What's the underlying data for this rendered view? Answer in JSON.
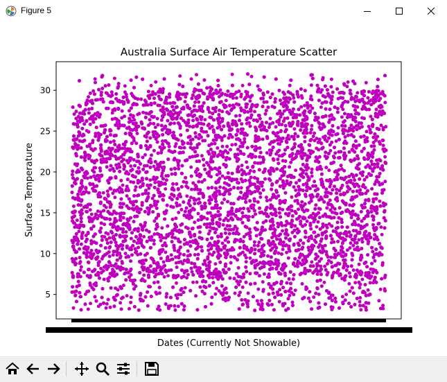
{
  "window": {
    "title": "Figure 5",
    "controls": [
      "minimize",
      "maximize",
      "close"
    ]
  },
  "toolbar": {
    "buttons": [
      "home-icon",
      "back-icon",
      "forward-icon",
      "pan-icon",
      "zoom-icon",
      "configure-subplots-icon",
      "save-icon"
    ],
    "coordinates_text": ""
  },
  "chart_data": {
    "type": "scatter",
    "title": "Australia Surface Air Temperature Scatter",
    "xlabel": "Dates (Currently Not Showable)",
    "ylabel": "Surface Temperature",
    "yticks": [
      5,
      10,
      15,
      20,
      25,
      30
    ],
    "ylim": [
      2,
      33.5
    ],
    "x_tick_labels_illegible": true,
    "marker_color": "#bf00bf",
    "point_count_approx": 8000,
    "y_distribution": {
      "min": 3,
      "max": 32,
      "dense_range": [
        7,
        30
      ],
      "sparse_below": 7
    }
  }
}
